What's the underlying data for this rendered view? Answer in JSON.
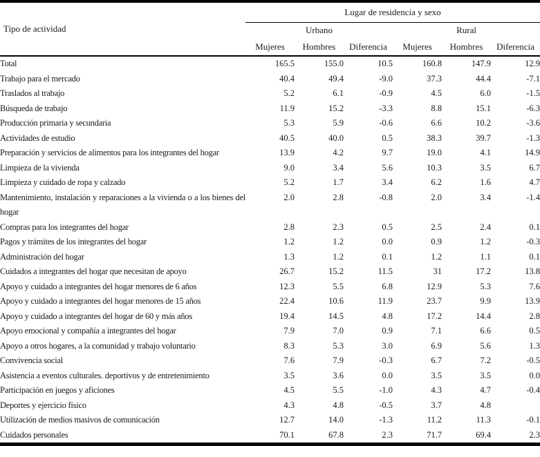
{
  "table": {
    "activity_header": "Tipo de actividad",
    "top_header": "Lugar de residencia y sexo",
    "groups": [
      "Urbano",
      "Rural"
    ],
    "sub_headers": [
      "Mujeres",
      "Hombres",
      "Diferencia",
      "Mujeres",
      "Hombres",
      "Diferencia"
    ],
    "rows": [
      {
        "activity": "Total",
        "values": [
          "165.5",
          "155.0",
          "10.5",
          "160.8",
          "147.9",
          "12.9"
        ]
      },
      {
        "activity": "Trabajo para el mercado",
        "values": [
          "40.4",
          "49.4",
          "-9.0",
          "37.3",
          "44.4",
          "-7.1"
        ]
      },
      {
        "activity": "Traslados al trabajo",
        "values": [
          "5.2",
          "6.1",
          "-0.9",
          "4.5",
          "6.0",
          "-1.5"
        ]
      },
      {
        "activity": "Búsqueda de trabajo",
        "values": [
          "11.9",
          "15.2",
          "-3.3",
          "8.8",
          "15.1",
          "-6.3"
        ]
      },
      {
        "activity": "Producción primaria y secundaria",
        "values": [
          "5.3",
          "5.9",
          "-0.6",
          "6.6",
          "10.2",
          "-3.6"
        ]
      },
      {
        "activity": "Actividades de estudio",
        "values": [
          "40.5",
          "40.0",
          "0.5",
          "38.3",
          "39.7",
          "-1.3"
        ]
      },
      {
        "activity": "Preparación y servicios de alimentos para los integrantes del hogar",
        "values": [
          "13.9",
          "4.2",
          "9.7",
          "19.0",
          "4.1",
          "14.9"
        ]
      },
      {
        "activity": "Limpieza de la vivienda",
        "values": [
          "9.0",
          "3.4",
          "5.6",
          "10.3",
          "3.5",
          "6.7"
        ]
      },
      {
        "activity": "Limpieza y cuidado de ropa y calzado",
        "values": [
          "5.2",
          "1.7",
          "3.4",
          "6.2",
          "1.6",
          "4.7"
        ]
      },
      {
        "activity": "Mantenimiento, instalación y reparaciones a la vivienda o a los bienes del hogar",
        "values": [
          "2.0",
          "2.8",
          "-0.8",
          "2.0",
          "3.4",
          "-1.4"
        ]
      },
      {
        "activity": "Compras para los integrantes del hogar",
        "values": [
          "2.8",
          "2.3",
          "0.5",
          "2.5",
          "2.4",
          "0.1"
        ]
      },
      {
        "activity": "Pagos y trámites de los integrantes del hogar",
        "values": [
          "1.2",
          "1.2",
          "0.0",
          "0.9",
          "1.2",
          "-0.3"
        ]
      },
      {
        "activity": "Administración del hogar",
        "values": [
          "1.3",
          "1.2",
          "0.1",
          "1.2",
          "1.1",
          "0.1"
        ]
      },
      {
        "activity": "Cuidados a integrantes del hogar que necesitan de apoyo",
        "values": [
          "26.7",
          "15.2",
          "11.5",
          "31",
          "17.2",
          "13.8"
        ]
      },
      {
        "activity": "Apoyo y cuidado a integrantes del hogar menores de 6 años",
        "values": [
          "12.3",
          "5.5",
          "6.8",
          "12.9",
          "5.3",
          "7.6"
        ]
      },
      {
        "activity": "Apoyo y cuidado a integrantes del hogar menores de 15 años",
        "values": [
          "22.4",
          "10.6",
          "11.9",
          "23.7",
          "9.9",
          "13.9"
        ]
      },
      {
        "activity": "Apoyo y cuidado a integrantes del hogar de 60 y más años",
        "values": [
          "19.4",
          "14.5",
          "4.8",
          "17.2",
          "14.4",
          "2.8"
        ]
      },
      {
        "activity": "Apoyo emocional y compañía a integrantes del hogar",
        "values": [
          "7.9",
          "7.0",
          "0.9",
          "7.1",
          "6.6",
          "0.5"
        ]
      },
      {
        "activity": "Apoyo a otros hogares, a la comunidad y trabajo voluntario",
        "values": [
          "8.3",
          "5.3",
          "3.0",
          "6.9",
          "5.6",
          "1.3"
        ]
      },
      {
        "activity": "Convivencia social",
        "values": [
          "7.6",
          "7.9",
          "-0.3",
          "6.7",
          "7.2",
          "-0.5"
        ]
      },
      {
        "activity": "Asistencia a eventos culturales. deportivos y de entretenimiento",
        "values": [
          "3.5",
          "3.6",
          "0.0",
          "3.5",
          "3.5",
          "0.0"
        ]
      },
      {
        "activity": "Participación en juegos y aficiones",
        "values": [
          "4.5",
          "5.5",
          "-1.0",
          "4.3",
          "4.7",
          "-0.4"
        ]
      },
      {
        "activity": "Deportes y ejercicio físico",
        "values": [
          "4.3",
          "4.8",
          "-0.5",
          "3.7",
          "4.8",
          ""
        ]
      },
      {
        "activity": "Utilización de medios masivos de comunicación",
        "values": [
          "12.7",
          "14.0",
          "-1.3",
          "11.2",
          "11.3",
          "-0.1"
        ]
      },
      {
        "activity": "Cuidados personales",
        "values": [
          "70.1",
          "67.8",
          "2.3",
          "71.7",
          "69.4",
          "2.3"
        ]
      }
    ]
  }
}
